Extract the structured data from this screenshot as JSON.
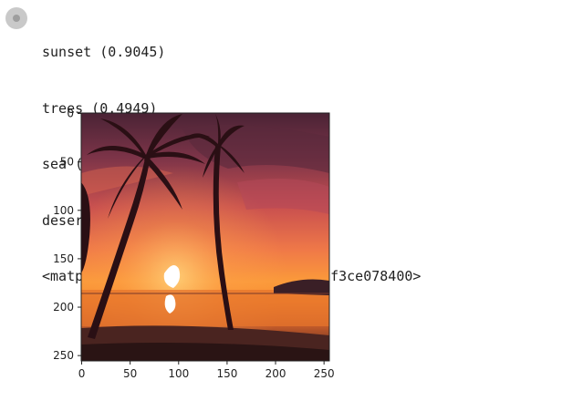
{
  "cell": {
    "run_icon": "cell-execution-indicator-icon",
    "output_lines": [
      "sunset (0.9045)",
      "trees (0.4949)",
      "sea (0.1155)",
      "desert (0.06306)",
      "<matplotlib.image.AxesImage at 0x7ff3ce078400>"
    ]
  },
  "plot": {
    "image_subject": "sunset-with-palm-trees",
    "x_ticks": [
      "0",
      "50",
      "100",
      "150",
      "200",
      "250"
    ],
    "y_ticks": [
      "0",
      "50",
      "100",
      "150",
      "200",
      "250"
    ]
  }
}
